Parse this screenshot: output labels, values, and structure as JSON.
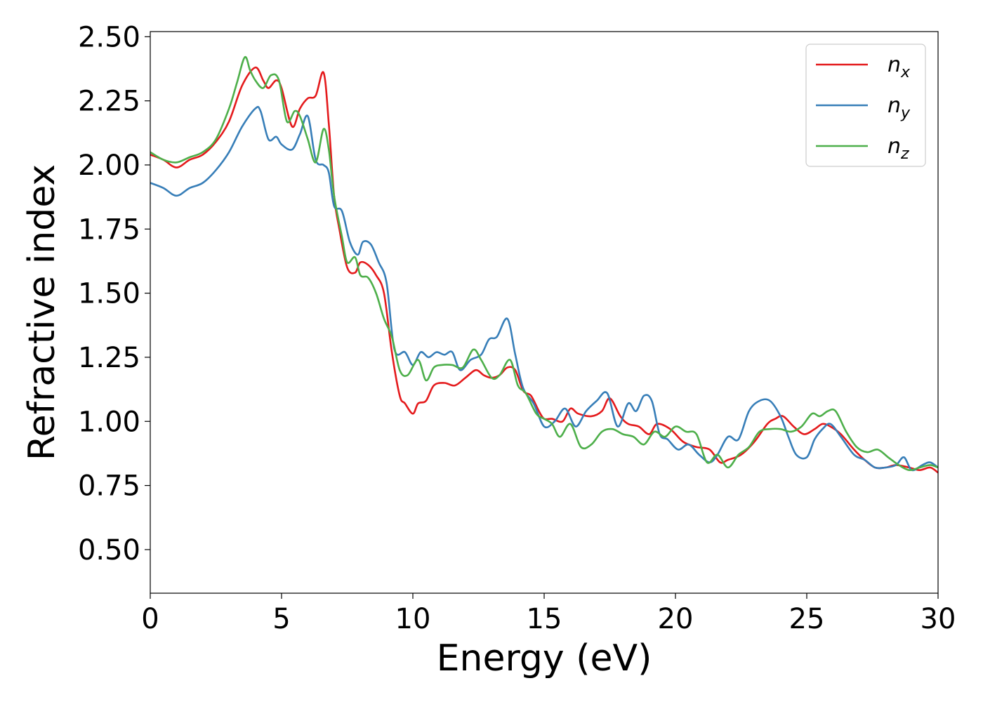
{
  "chart_data": {
    "type": "line",
    "title": "",
    "xlabel": "Energy (eV)",
    "ylabel": "Refractive index",
    "xlim": [
      0,
      30
    ],
    "ylim": [
      0.33,
      2.52
    ],
    "xticks": [
      0,
      5,
      10,
      15,
      20,
      25,
      30
    ],
    "xtick_labels": [
      "0",
      "5",
      "10",
      "15",
      "20",
      "25",
      "30"
    ],
    "yticks": [
      0.5,
      0.75,
      1.0,
      1.25,
      1.5,
      1.75,
      2.0,
      2.25,
      2.5
    ],
    "ytick_labels": [
      "0.50",
      "0.75",
      "1.00",
      "1.25",
      "1.50",
      "1.75",
      "2.00",
      "2.25",
      "2.50"
    ],
    "grid": false,
    "legend_position": "top-right",
    "series": [
      {
        "name": "n_x",
        "label_base": "n",
        "label_sub": "x",
        "color": "#e41a1c",
        "x": [
          0,
          0.5,
          1.0,
          1.5,
          2.0,
          2.5,
          3.0,
          3.5,
          4.0,
          4.3,
          4.5,
          4.8,
          5.0,
          5.4,
          5.7,
          6.0,
          6.3,
          6.6,
          6.8,
          7.0,
          7.2,
          7.5,
          7.8,
          8.0,
          8.3,
          8.6,
          8.9,
          9.2,
          9.5,
          9.7,
          10.0,
          10.2,
          10.5,
          10.8,
          11.2,
          11.6,
          12.0,
          12.4,
          12.7,
          13.0,
          13.3,
          13.6,
          13.9,
          14.2,
          14.5,
          14.8,
          15.0,
          15.3,
          15.7,
          16.0,
          16.3,
          16.8,
          17.2,
          17.5,
          17.9,
          18.2,
          18.6,
          19.0,
          19.3,
          19.8,
          20.3,
          20.8,
          21.3,
          21.7,
          22.0,
          22.5,
          23.0,
          23.5,
          23.8,
          24.1,
          24.5,
          24.9,
          25.3,
          25.6,
          25.9,
          26.3,
          26.8,
          27.2,
          27.6,
          28.0,
          28.4,
          28.9,
          29.3,
          29.7,
          30.0
        ],
        "y": [
          2.04,
          2.02,
          1.99,
          2.02,
          2.04,
          2.09,
          2.17,
          2.31,
          2.38,
          2.33,
          2.3,
          2.33,
          2.3,
          2.15,
          2.22,
          2.26,
          2.27,
          2.36,
          2.16,
          1.88,
          1.75,
          1.6,
          1.58,
          1.62,
          1.61,
          1.57,
          1.5,
          1.27,
          1.1,
          1.07,
          1.03,
          1.07,
          1.08,
          1.14,
          1.15,
          1.14,
          1.17,
          1.2,
          1.18,
          1.17,
          1.18,
          1.21,
          1.2,
          1.12,
          1.1,
          1.04,
          1.01,
          1.01,
          1.0,
          1.05,
          1.03,
          1.02,
          1.04,
          1.09,
          1.02,
          0.99,
          0.98,
          0.95,
          0.99,
          0.97,
          0.92,
          0.9,
          0.89,
          0.84,
          0.85,
          0.87,
          0.92,
          0.99,
          1.01,
          1.02,
          0.98,
          0.95,
          0.97,
          0.99,
          0.98,
          0.95,
          0.89,
          0.85,
          0.82,
          0.82,
          0.83,
          0.82,
          0.81,
          0.82,
          0.8
        ]
      },
      {
        "name": "n_y",
        "label_base": "n",
        "label_sub": "y",
        "color": "#377eb8",
        "x": [
          0,
          0.5,
          1.0,
          1.5,
          2.0,
          2.5,
          3.0,
          3.5,
          4.0,
          4.2,
          4.5,
          4.8,
          5.0,
          5.4,
          5.7,
          6.0,
          6.3,
          6.6,
          6.8,
          7.0,
          7.3,
          7.6,
          7.9,
          8.1,
          8.4,
          8.7,
          9.0,
          9.3,
          9.7,
          10.0,
          10.3,
          10.6,
          10.9,
          11.2,
          11.5,
          11.8,
          12.2,
          12.6,
          12.9,
          13.2,
          13.6,
          13.9,
          14.2,
          14.6,
          15.0,
          15.4,
          15.8,
          16.2,
          16.6,
          17.0,
          17.4,
          17.8,
          18.2,
          18.5,
          18.8,
          19.1,
          19.4,
          19.7,
          20.1,
          20.5,
          20.9,
          21.3,
          21.6,
          22.0,
          22.4,
          22.8,
          23.2,
          23.6,
          24.0,
          24.3,
          24.6,
          25.0,
          25.3,
          25.6,
          25.9,
          26.3,
          26.8,
          27.2,
          27.6,
          28.0,
          28.4,
          28.7,
          29.0,
          29.4,
          29.7,
          30.0
        ],
        "y": [
          1.93,
          1.91,
          1.88,
          1.91,
          1.93,
          1.98,
          2.05,
          2.15,
          2.22,
          2.21,
          2.1,
          2.11,
          2.08,
          2.06,
          2.12,
          2.19,
          2.02,
          2.0,
          1.97,
          1.84,
          1.82,
          1.7,
          1.65,
          1.7,
          1.69,
          1.62,
          1.54,
          1.28,
          1.27,
          1.22,
          1.27,
          1.25,
          1.27,
          1.26,
          1.27,
          1.2,
          1.24,
          1.26,
          1.32,
          1.33,
          1.4,
          1.26,
          1.13,
          1.07,
          0.98,
          1.0,
          1.05,
          0.98,
          1.04,
          1.08,
          1.11,
          0.98,
          1.07,
          1.04,
          1.1,
          1.08,
          0.95,
          0.93,
          0.89,
          0.91,
          0.87,
          0.84,
          0.87,
          0.94,
          0.93,
          1.04,
          1.08,
          1.08,
          1.02,
          0.94,
          0.87,
          0.86,
          0.93,
          0.97,
          0.99,
          0.94,
          0.87,
          0.85,
          0.82,
          0.82,
          0.83,
          0.86,
          0.81,
          0.83,
          0.84,
          0.82
        ]
      },
      {
        "name": "n_z",
        "label_base": "n",
        "label_sub": "z",
        "color": "#4daf4a",
        "x": [
          0,
          0.5,
          1.0,
          1.5,
          2.0,
          2.5,
          3.0,
          3.3,
          3.6,
          3.8,
          4.0,
          4.3,
          4.6,
          4.9,
          5.2,
          5.5,
          5.7,
          6.0,
          6.3,
          6.6,
          6.8,
          7.0,
          7.3,
          7.5,
          7.8,
          8.0,
          8.3,
          8.6,
          8.9,
          9.2,
          9.5,
          9.8,
          10.2,
          10.5,
          10.8,
          11.1,
          11.5,
          11.9,
          12.3,
          12.6,
          13.0,
          13.3,
          13.7,
          14.0,
          14.3,
          14.7,
          15.0,
          15.3,
          15.6,
          16.0,
          16.4,
          16.8,
          17.2,
          17.6,
          18.0,
          18.4,
          18.8,
          19.2,
          19.6,
          20.0,
          20.4,
          20.8,
          21.2,
          21.6,
          22.0,
          22.4,
          22.8,
          23.2,
          23.6,
          24.0,
          24.4,
          24.8,
          25.2,
          25.5,
          25.8,
          26.1,
          26.5,
          26.9,
          27.3,
          27.7,
          28.1,
          28.5,
          28.9,
          29.3,
          29.7,
          30.0
        ],
        "y": [
          2.05,
          2.02,
          2.01,
          2.03,
          2.05,
          2.1,
          2.22,
          2.32,
          2.42,
          2.37,
          2.33,
          2.3,
          2.35,
          2.33,
          2.17,
          2.21,
          2.19,
          2.1,
          2.01,
          2.14,
          2.06,
          1.88,
          1.72,
          1.62,
          1.64,
          1.57,
          1.56,
          1.5,
          1.4,
          1.33,
          1.2,
          1.18,
          1.24,
          1.16,
          1.21,
          1.22,
          1.22,
          1.21,
          1.28,
          1.24,
          1.17,
          1.18,
          1.24,
          1.14,
          1.11,
          1.03,
          1.01,
          0.99,
          0.94,
          0.99,
          0.9,
          0.91,
          0.96,
          0.97,
          0.95,
          0.94,
          0.91,
          0.96,
          0.94,
          0.98,
          0.96,
          0.95,
          0.84,
          0.87,
          0.82,
          0.87,
          0.9,
          0.96,
          0.97,
          0.97,
          0.96,
          0.98,
          1.03,
          1.02,
          1.04,
          1.04,
          0.96,
          0.9,
          0.88,
          0.89,
          0.86,
          0.83,
          0.81,
          0.82,
          0.83,
          0.82
        ]
      }
    ]
  }
}
